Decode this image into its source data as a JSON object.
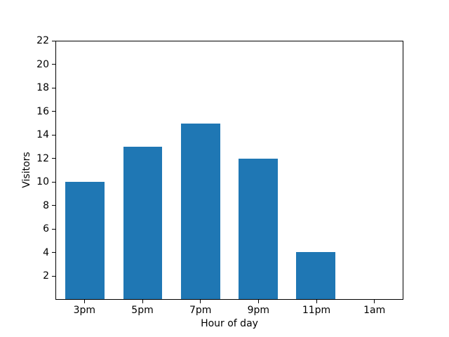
{
  "chart_data": {
    "type": "bar",
    "categories": [
      "3pm",
      "5pm",
      "7pm",
      "9pm",
      "11pm",
      "1am"
    ],
    "values": [
      10,
      13,
      15,
      12,
      4,
      0
    ],
    "xlabel": "Hour of day",
    "ylabel": "Visitors",
    "ylim": [
      0,
      22
    ],
    "yticks": [
      2,
      4,
      6,
      8,
      10,
      12,
      14,
      16,
      18,
      20,
      22
    ],
    "bar_color": "#1f77b4",
    "background_color": "#ffffff",
    "grid": false,
    "legend_position": "none"
  }
}
